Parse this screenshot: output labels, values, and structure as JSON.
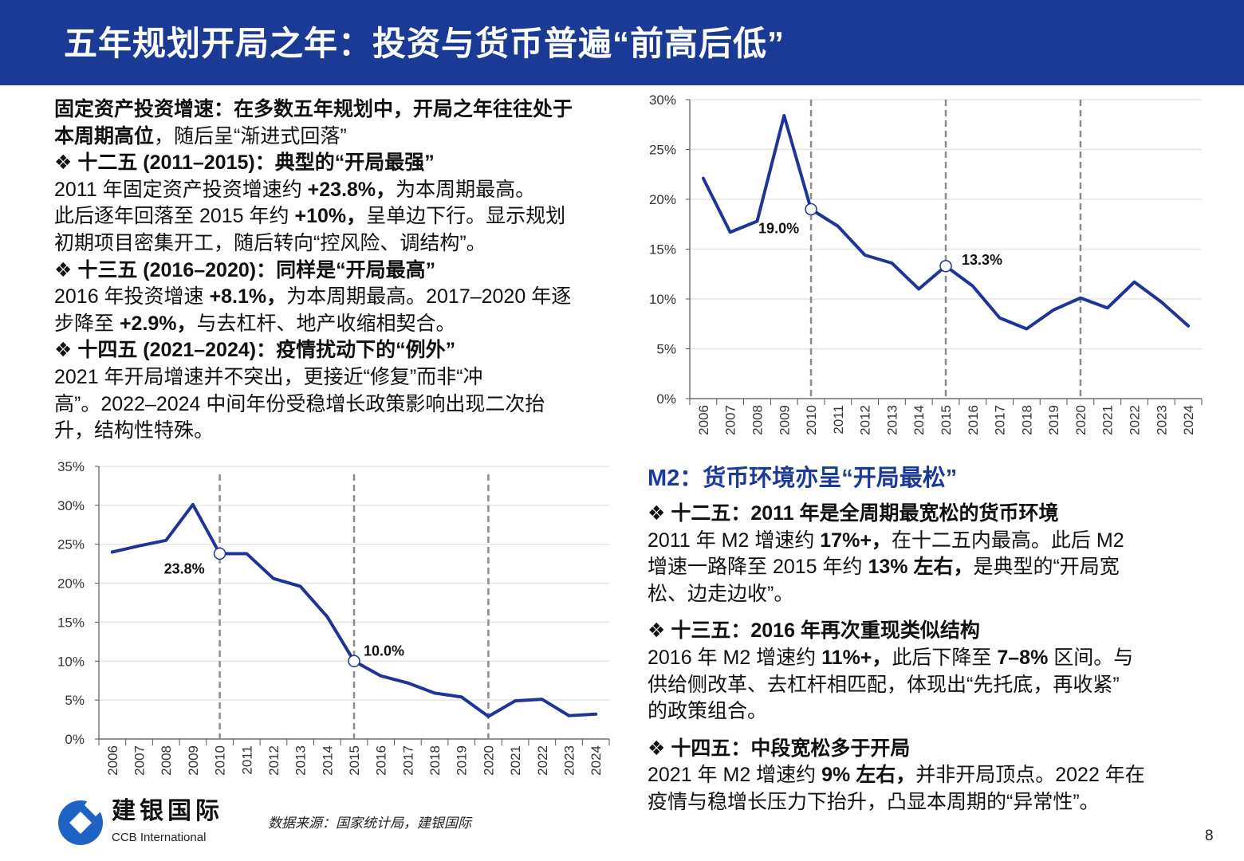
{
  "header": {
    "title": "五年规划开局之年：投资与货币普遍“前高后低”"
  },
  "left_text": {
    "lines": [
      [
        {
          "t": "固定资产投资增速：在多数五年规划中，开局之年往往处于",
          "b": true
        }
      ],
      [
        {
          "t": "本周期高位",
          "b": true
        },
        {
          "t": "，随后呈“渐进式回落”",
          "b": false
        }
      ],
      [
        {
          "t": "❖  十二五 (2011–2015)：典型的“开局最强”",
          "b": true
        }
      ],
      [
        {
          "t": "2011 年固定资产投资增速约 ",
          "b": false
        },
        {
          "t": "+23.8%，",
          "b": true
        },
        {
          "t": "为本周期最高。",
          "b": false
        }
      ],
      [
        {
          "t": "此后逐年回落至 2015 年约 ",
          "b": false
        },
        {
          "t": "+10%，",
          "b": true
        },
        {
          "t": "呈单边下行。显示规划",
          "b": false
        }
      ],
      [
        {
          "t": "初期项目密集开工，随后转向“控风险、调结构”。",
          "b": false
        }
      ],
      [
        {
          "t": "❖  十三五 (2016–2020)：同样是“开局最高”",
          "b": true
        }
      ],
      [
        {
          "t": "2016 年投资增速 ",
          "b": false
        },
        {
          "t": "+8.1%，",
          "b": true
        },
        {
          "t": "为本周期最高。2017–2020 年逐",
          "b": false
        }
      ],
      [
        {
          "t": "步降至 ",
          "b": false
        },
        {
          "t": "+2.9%，",
          "b": true
        },
        {
          "t": "与去杠杆、地产收缩相契合。",
          "b": false
        }
      ],
      [
        {
          "t": "❖  十四五 (2021–2024)：疫情扰动下的“例外”",
          "b": true
        }
      ],
      [
        {
          "t": "2021 年开局增速并不突出，更接近“修复”而非“冲",
          "b": false
        }
      ],
      [
        {
          "t": "高”。2022–2024 中间年份受稳增长政策影响出现二次抬",
          "b": false
        }
      ],
      [
        {
          "t": "升，结构性特殊。",
          "b": false
        }
      ]
    ]
  },
  "right_text": {
    "heading": "M2：货币环境亦呈“开局最松”",
    "sections": [
      {
        "lines": [
          [
            {
              "t": "❖  十二五：2011 年是全周期最宽松的货币环境",
              "b": true
            }
          ],
          [
            {
              "t": "2011 年 M2 增速约 ",
              "b": false
            },
            {
              "t": "17%+，",
              "b": true
            },
            {
              "t": "在十二五内最高。此后 M2",
              "b": false
            }
          ],
          [
            {
              "t": "增速一路降至 2015 年约 ",
              "b": false
            },
            {
              "t": "13% 左右，",
              "b": true
            },
            {
              "t": "是典型的“开局宽",
              "b": false
            }
          ],
          [
            {
              "t": "松、边走边收”。",
              "b": false
            }
          ]
        ]
      },
      {
        "lines": [
          [
            {
              "t": "❖  十三五：2016 年再次重现类似结构",
              "b": true
            }
          ],
          [
            {
              "t": "2016 年 M2 增速约 ",
              "b": false
            },
            {
              "t": "11%+，",
              "b": true
            },
            {
              "t": "此后下降至 ",
              "b": false
            },
            {
              "t": "7–8%",
              "b": true
            },
            {
              "t": " 区间。与",
              "b": false
            }
          ],
          [
            {
              "t": "供给侧改革、去杠杆相匹配，体现出“先托底，再收紧”",
              "b": false
            }
          ],
          [
            {
              "t": "的政策组合。",
              "b": false
            }
          ]
        ]
      },
      {
        "lines": [
          [
            {
              "t": "❖  十四五：中段宽松多于开局",
              "b": true
            }
          ],
          [
            {
              "t": "2021 年 M2 增速约 ",
              "b": false
            },
            {
              "t": "9% 左右，",
              "b": true
            },
            {
              "t": "并非开局顶点。2022 年在",
              "b": false
            }
          ],
          [
            {
              "t": "疫情与稳增长压力下抬升，凸显本周期的“异常性”。",
              "b": false
            }
          ]
        ]
      }
    ]
  },
  "chart_data": [
    {
      "type": "line",
      "id": "m2",
      "categories": [
        "2006",
        "2007",
        "2008",
        "2009",
        "2010",
        "2011",
        "2012",
        "2013",
        "2014",
        "2015",
        "2016",
        "2017",
        "2018",
        "2019",
        "2020",
        "2021",
        "2022",
        "2023",
        "2024"
      ],
      "values": [
        22.1,
        16.7,
        17.8,
        28.4,
        19.0,
        17.3,
        14.4,
        13.6,
        11.0,
        13.3,
        11.3,
        8.1,
        7.0,
        8.9,
        10.1,
        9.1,
        11.7,
        9.7,
        7.3
      ],
      "ylim": [
        0,
        30
      ],
      "yticks": [
        "0%",
        "5%",
        "10%",
        "15%",
        "20%",
        "25%",
        "30%"
      ],
      "ytick_values": [
        0,
        5,
        10,
        15,
        20,
        25,
        30
      ],
      "grid": true,
      "dashed_markers": [
        "2010",
        "2015",
        "2020"
      ],
      "annotations": [
        {
          "category": "2010",
          "label": "19.0%"
        },
        {
          "category": "2015",
          "label": "13.3%"
        }
      ],
      "line_color": "#1f3497"
    },
    {
      "type": "line",
      "id": "fai",
      "categories": [
        "2006",
        "2007",
        "2008",
        "2009",
        "2010",
        "2011",
        "2012",
        "2013",
        "2014",
        "2015",
        "2016",
        "2017",
        "2018",
        "2019",
        "2020",
        "2021",
        "2022",
        "2023",
        "2024"
      ],
      "values": [
        24.0,
        24.8,
        25.5,
        30.1,
        23.8,
        23.8,
        20.6,
        19.6,
        15.7,
        10.0,
        8.1,
        7.2,
        5.9,
        5.4,
        2.9,
        4.9,
        5.1,
        3.0,
        3.2
      ],
      "ylim": [
        0,
        35
      ],
      "yticks": [
        "0%",
        "5%",
        "10%",
        "15%",
        "20%",
        "25%",
        "30%",
        "35%"
      ],
      "ytick_values": [
        0,
        5,
        10,
        15,
        20,
        25,
        30,
        35
      ],
      "grid": true,
      "dashed_markers": [
        "2010",
        "2015",
        "2020"
      ],
      "annotations": [
        {
          "category": "2010",
          "label": "23.8%"
        },
        {
          "category": "2015",
          "label": "10.0%"
        }
      ],
      "line_color": "#1f3497"
    }
  ],
  "footer": {
    "logo_cn": "建银国际",
    "logo_en": "CCB International",
    "source": "数据来源：国家统计局，建银国际",
    "page_number": "8"
  },
  "colors": {
    "brand_blue": "#1b3a95",
    "logo_blue": "#1e63c4",
    "dashed_line": "#8c8c8c"
  }
}
